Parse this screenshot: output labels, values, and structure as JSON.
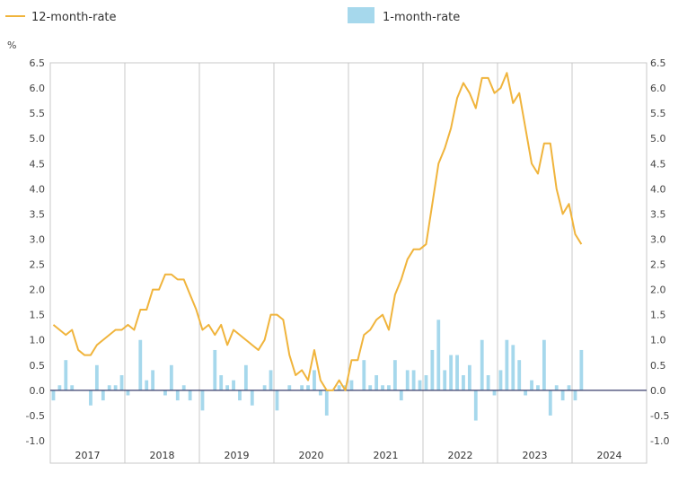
{
  "chart_data": {
    "type": "bar+line",
    "unit_label": "%",
    "ylim": [
      -1.0,
      6.5
    ],
    "y_ticks": [
      "6.5",
      "6.0",
      "5.5",
      "5.0",
      "4.5",
      "4.0",
      "3.5",
      "3.0",
      "2.5",
      "2.0",
      "1.5",
      "1.0",
      "0.5",
      "0.0",
      "-0.5",
      "-1.0"
    ],
    "years": [
      "2017",
      "2018",
      "2019",
      "2020",
      "2021",
      "2022",
      "2023",
      "2024"
    ],
    "grid": "vertical-year-lines",
    "legend_position": "top",
    "series": [
      {
        "name": "12-month-rate",
        "kind": "line",
        "color": "#f0b43c",
        "values": [
          1.3,
          1.2,
          1.1,
          1.2,
          0.8,
          0.7,
          0.7,
          0.9,
          1.0,
          1.1,
          1.2,
          1.2,
          1.3,
          1.2,
          1.6,
          1.6,
          2.0,
          2.0,
          2.3,
          2.3,
          2.2,
          2.2,
          1.9,
          1.6,
          1.2,
          1.3,
          1.1,
          1.3,
          0.9,
          1.2,
          1.1,
          1.0,
          0.9,
          0.8,
          1.0,
          1.5,
          1.5,
          1.4,
          0.7,
          0.3,
          0.4,
          0.2,
          0.8,
          0.2,
          0.0,
          0.0,
          0.2,
          0.0,
          0.6,
          0.6,
          1.1,
          1.2,
          1.4,
          1.5,
          1.2,
          1.9,
          2.2,
          2.6,
          2.8,
          2.8,
          2.9,
          3.7,
          4.5,
          4.8,
          5.2,
          5.8,
          6.1,
          5.9,
          5.6,
          6.2,
          6.2,
          5.9,
          6.0,
          6.3,
          5.7,
          5.9,
          5.2,
          4.5,
          4.3,
          4.9,
          4.9,
          4.0,
          3.5,
          3.7,
          3.1,
          2.9
        ]
      },
      {
        "name": "1-month-rate",
        "kind": "bar",
        "color": "#a6d8ec",
        "values": [
          -0.2,
          0.1,
          0.6,
          0.1,
          0.0,
          0.0,
          -0.3,
          0.5,
          -0.2,
          0.1,
          0.1,
          0.3,
          -0.1,
          0.0,
          1.0,
          0.2,
          0.4,
          0.0,
          -0.1,
          0.5,
          -0.2,
          0.1,
          -0.2,
          0.0,
          -0.4,
          0.0,
          0.8,
          0.3,
          0.1,
          0.2,
          -0.2,
          0.5,
          -0.3,
          0.0,
          0.1,
          0.4,
          -0.4,
          0.0,
          0.1,
          0.0,
          0.1,
          0.1,
          0.4,
          -0.1,
          -0.5,
          0.0,
          0.1,
          0.1,
          0.2,
          0.0,
          0.6,
          0.1,
          0.3,
          0.1,
          0.1,
          0.6,
          -0.2,
          0.4,
          0.4,
          0.2,
          0.3,
          0.8,
          1.4,
          0.4,
          0.7,
          0.7,
          0.3,
          0.5,
          -0.6,
          1.0,
          0.3,
          -0.1,
          0.4,
          1.0,
          0.9,
          0.6,
          -0.1,
          0.2,
          0.1,
          1.0,
          -0.5,
          0.1,
          -0.2,
          0.1,
          -0.2,
          0.8
        ]
      }
    ]
  }
}
